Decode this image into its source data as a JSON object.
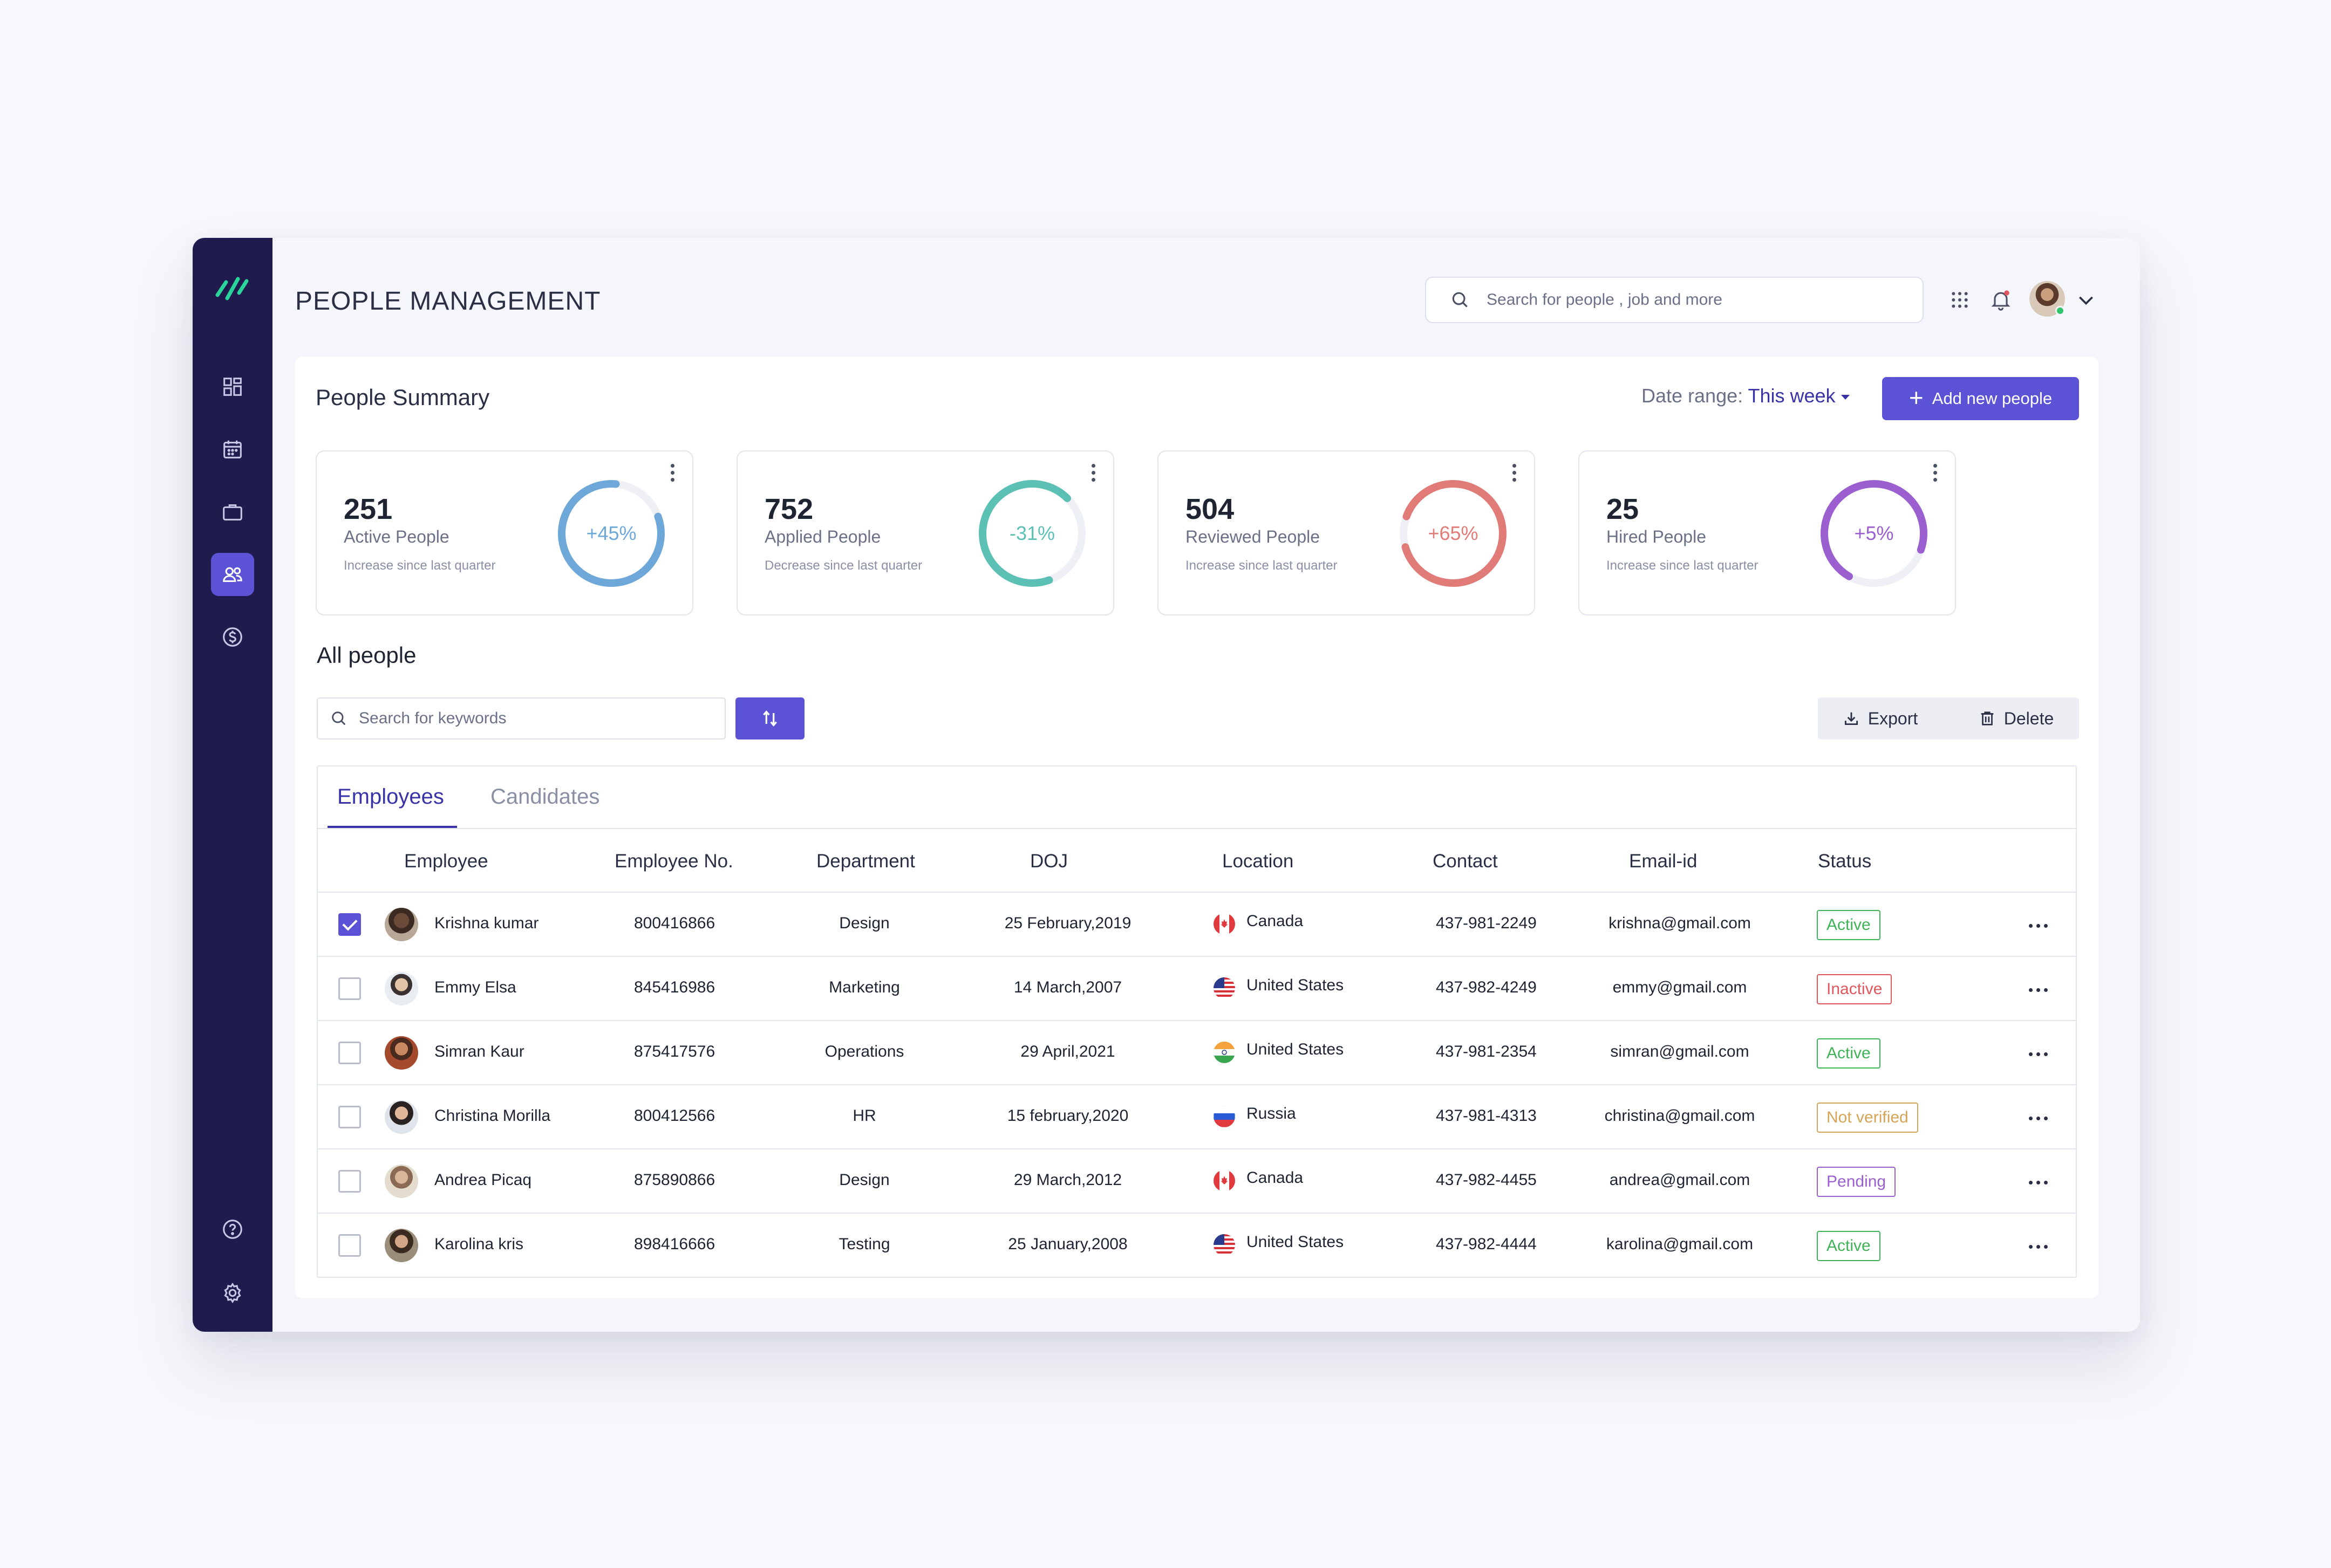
{
  "header": {
    "title": "PEOPLE MANAGEMENT",
    "search_placeholder": "Search for people , job and more"
  },
  "sidebar": {
    "items": [
      {
        "name": "dashboard",
        "icon": "grid-icon"
      },
      {
        "name": "calendar",
        "icon": "calendar-icon"
      },
      {
        "name": "jobs",
        "icon": "briefcase-icon"
      },
      {
        "name": "people",
        "icon": "people-icon",
        "active": true
      },
      {
        "name": "payroll",
        "icon": "dollar-icon"
      },
      {
        "name": "help",
        "icon": "help-icon"
      },
      {
        "name": "settings",
        "icon": "gear-icon"
      }
    ],
    "accent": "#5b52d6",
    "background": "#1f1b4d"
  },
  "summary": {
    "title": "People Summary",
    "date_range_label": "Date range:",
    "date_range_value": "This week",
    "add_button": "Add new people",
    "cards": [
      {
        "value": "251",
        "label": "Active People",
        "sub": "Increase since last quarter",
        "pct": "+45%",
        "color": "#6ea8d9"
      },
      {
        "value": "752",
        "label": "Applied People",
        "sub": "Decrease since last quarter",
        "pct": "-31%",
        "color": "#5cc0b5"
      },
      {
        "value": "504",
        "label": "Reviewed People",
        "sub": "Increase since last quarter",
        "pct": "+65%",
        "color": "#e07b78"
      },
      {
        "value": "25",
        "label": "Hired People",
        "sub": "Increase since last quarter",
        "pct": "+5%",
        "color": "#9b5fd0"
      }
    ]
  },
  "people": {
    "title": "All people",
    "search_placeholder": "Search for keywords",
    "export_label": "Export",
    "delete_label": "Delete",
    "tabs": [
      "Employees",
      "Candidates"
    ],
    "columns": [
      "Employee",
      "Employee  No.",
      "Department",
      "DOJ",
      "Location",
      "Contact",
      "Email-id",
      "Status"
    ],
    "rows": [
      {
        "name": "Krishna kumar",
        "no": "800416866",
        "dept": "Design",
        "doj": "25 February,2019",
        "location": "Canada",
        "flag": "canada",
        "contact": "437-981-2249",
        "email": "krishna@gmail.com",
        "status": "Active",
        "checked": true
      },
      {
        "name": "Emmy Elsa",
        "no": "845416986",
        "dept": "Marketing",
        "doj": "14 March,2007",
        "location": "United States",
        "flag": "usa",
        "contact": "437-982-4249",
        "email": "emmy@gmail.com",
        "status": "Inactive",
        "checked": false
      },
      {
        "name": "Simran Kaur",
        "no": "875417576",
        "dept": "Operations",
        "doj": "29 April,2021",
        "location": "United States",
        "flag": "india",
        "contact": "437-981-2354",
        "email": "simran@gmail.com",
        "status": "Active",
        "checked": false
      },
      {
        "name": "Christina Morilla",
        "no": "800412566",
        "dept": "HR",
        "doj": "15 february,2020",
        "location": "Russia",
        "flag": "russia",
        "contact": "437-981-4313",
        "email": "christina@gmail.com",
        "status": "Not verified",
        "checked": false
      },
      {
        "name": "Andrea Picaq",
        "no": "875890866",
        "dept": "Design",
        "doj": "29 March,2012",
        "location": "Canada",
        "flag": "canada",
        "contact": "437-982-4455",
        "email": "andrea@gmail.com",
        "status": "Pending",
        "checked": false
      },
      {
        "name": "Karolina kris",
        "no": "898416666",
        "dept": "Testing",
        "doj": "25 January,2008",
        "location": "United States",
        "flag": "usa",
        "contact": "437-982-4444",
        "email": "karolina@gmail.com",
        "status": "Active",
        "checked": false
      }
    ]
  }
}
